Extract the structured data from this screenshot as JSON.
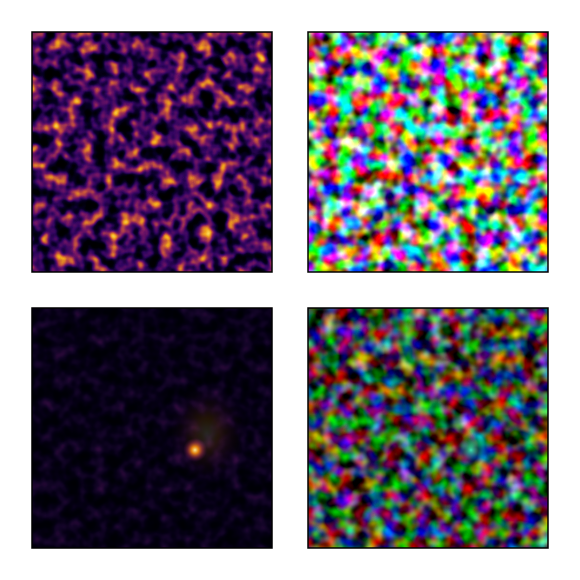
{
  "panels": [
    {
      "colormap": "inferno"
    },
    {
      "colormap": "hsv"
    },
    {
      "colormap": "inferno",
      "dim": true
    },
    {
      "colormap": "hsv",
      "dim": true
    }
  ]
}
